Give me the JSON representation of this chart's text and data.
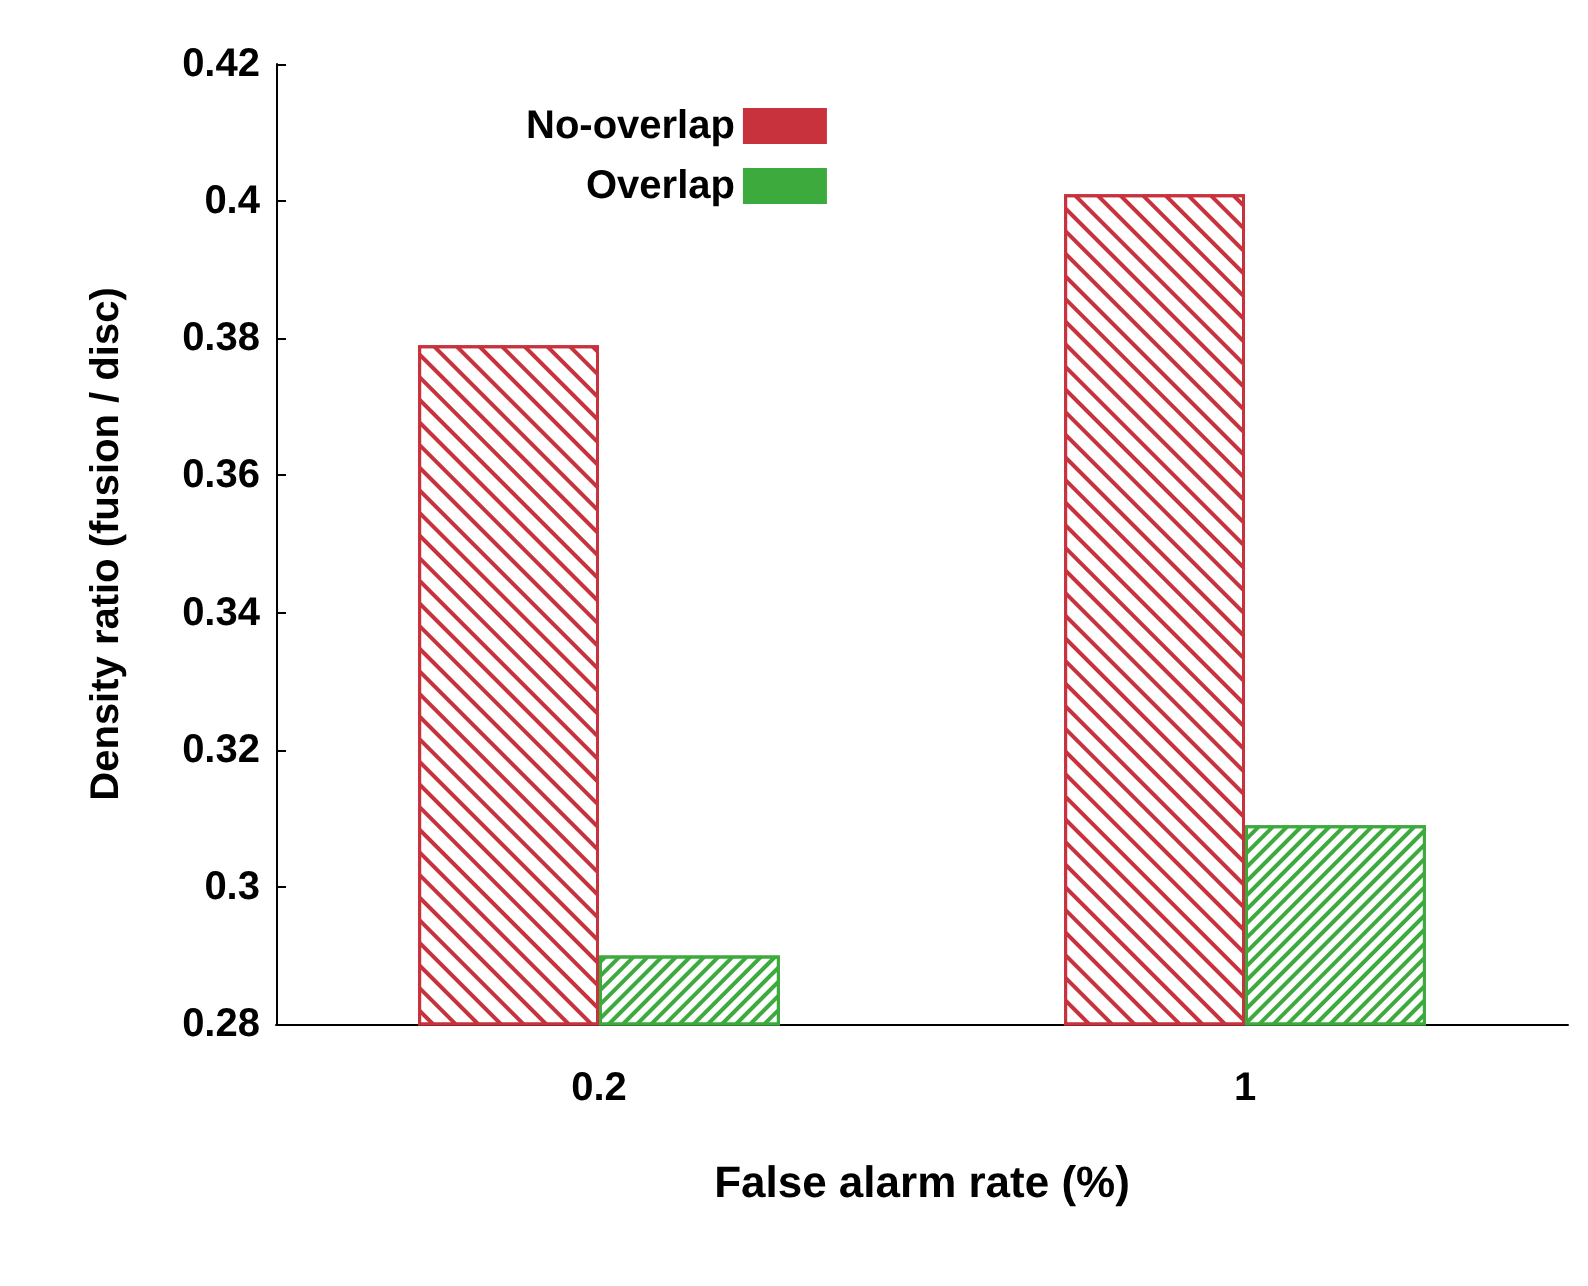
{
  "chart_data": {
    "type": "bar",
    "xlabel": "False alarm rate (%)",
    "ylabel": "Density ratio (fusion / disc)",
    "categories": [
      "0.2",
      "1"
    ],
    "series": [
      {
        "name": "No-overlap",
        "color": "#c8323c",
        "values": [
          0.379,
          0.401
        ]
      },
      {
        "name": "Overlap",
        "color": "#3caa3c",
        "values": [
          0.29,
          0.309
        ]
      }
    ],
    "ylim": [
      0.28,
      0.42
    ],
    "yticks": [
      0.28,
      0.3,
      0.32,
      0.34,
      0.36,
      0.38,
      0.4,
      0.42
    ],
    "legend": "top left",
    "grid": false
  }
}
